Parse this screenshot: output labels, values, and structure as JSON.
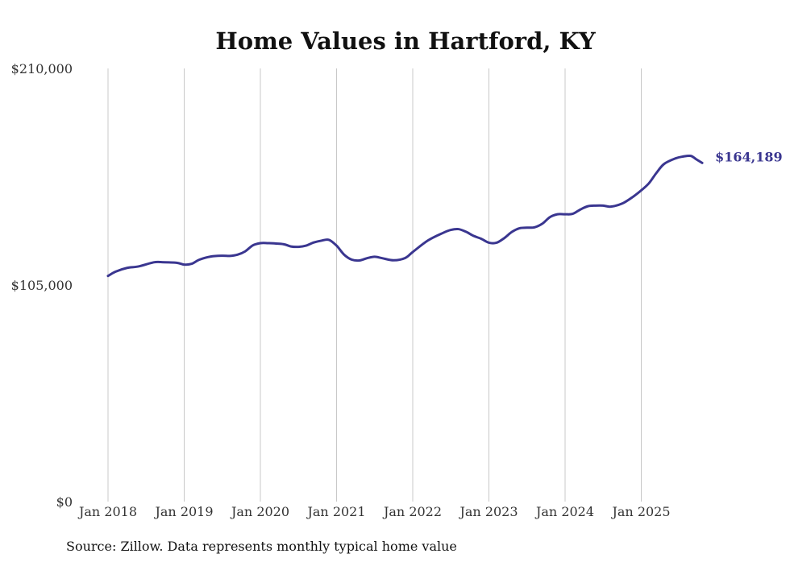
{
  "chart_data": {
    "type": "line",
    "title": "Home Values in Hartford, KY",
    "xlabel": "",
    "ylabel": "",
    "ylim": [
      0,
      210000
    ],
    "y_ticks": [
      {
        "value": 0,
        "label": "$0"
      },
      {
        "value": 105000,
        "label": "$105,000"
      },
      {
        "value": 210000,
        "label": "$210,000"
      }
    ],
    "x_ticks": [
      {
        "value": 2018,
        "label": "Jan 2018"
      },
      {
        "value": 2019,
        "label": "Jan 2019"
      },
      {
        "value": 2020,
        "label": "Jan 2020"
      },
      {
        "value": 2021,
        "label": "Jan 2021"
      },
      {
        "value": 2022,
        "label": "Jan 2022"
      },
      {
        "value": 2023,
        "label": "Jan 2023"
      },
      {
        "value": 2024,
        "label": "Jan 2024"
      },
      {
        "value": 2025,
        "label": "Jan 2025"
      }
    ],
    "xlim": [
      2018,
      2026
    ],
    "grid": "vertical",
    "series": [
      {
        "name": "Typical home value",
        "color": "#3a3690",
        "end_label": "$164,189",
        "points": [
          [
            2018.0,
            109400
          ],
          [
            2018.1,
            111500
          ],
          [
            2018.25,
            113300
          ],
          [
            2018.4,
            114000
          ],
          [
            2018.6,
            116000
          ],
          [
            2018.7,
            116100
          ],
          [
            2018.9,
            115800
          ],
          [
            2019.0,
            114900
          ],
          [
            2019.1,
            115300
          ],
          [
            2019.2,
            117300
          ],
          [
            2019.35,
            118800
          ],
          [
            2019.5,
            119200
          ],
          [
            2019.6,
            119100
          ],
          [
            2019.7,
            119700
          ],
          [
            2019.8,
            121300
          ],
          [
            2019.9,
            124200
          ],
          [
            2020.0,
            125300
          ],
          [
            2020.1,
            125300
          ],
          [
            2020.3,
            124800
          ],
          [
            2020.4,
            123700
          ],
          [
            2020.5,
            123500
          ],
          [
            2020.6,
            124100
          ],
          [
            2020.7,
            125600
          ],
          [
            2020.8,
            126500
          ],
          [
            2020.9,
            126900
          ],
          [
            2021.0,
            124100
          ],
          [
            2021.1,
            119700
          ],
          [
            2021.2,
            117300
          ],
          [
            2021.3,
            116900
          ],
          [
            2021.4,
            118000
          ],
          [
            2021.5,
            118700
          ],
          [
            2021.6,
            118000
          ],
          [
            2021.75,
            117000
          ],
          [
            2021.9,
            118100
          ],
          [
            2022.0,
            121000
          ],
          [
            2022.2,
            126600
          ],
          [
            2022.4,
            130300
          ],
          [
            2022.5,
            131700
          ],
          [
            2022.6,
            132100
          ],
          [
            2022.7,
            130800
          ],
          [
            2022.8,
            128800
          ],
          [
            2022.9,
            127400
          ],
          [
            2023.0,
            125500
          ],
          [
            2023.1,
            125500
          ],
          [
            2023.2,
            127700
          ],
          [
            2023.3,
            130700
          ],
          [
            2023.4,
            132500
          ],
          [
            2023.5,
            132800
          ],
          [
            2023.6,
            133000
          ],
          [
            2023.7,
            134700
          ],
          [
            2023.8,
            137900
          ],
          [
            2023.9,
            139300
          ],
          [
            2024.0,
            139300
          ],
          [
            2024.1,
            139500
          ],
          [
            2024.2,
            141600
          ],
          [
            2024.3,
            143200
          ],
          [
            2024.4,
            143500
          ],
          [
            2024.5,
            143500
          ],
          [
            2024.6,
            143000
          ],
          [
            2024.75,
            144500
          ],
          [
            2024.9,
            148000
          ],
          [
            2025.0,
            150900
          ],
          [
            2025.1,
            154300
          ],
          [
            2025.2,
            159400
          ],
          [
            2025.3,
            163700
          ],
          [
            2025.45,
            166400
          ],
          [
            2025.55,
            167300
          ],
          [
            2025.65,
            167600
          ],
          [
            2025.72,
            166000
          ],
          [
            2025.8,
            164189
          ]
        ]
      }
    ],
    "annotations": [
      {
        "text": "Source: Zillow. Data represents monthly typical home value",
        "position": "bottom-left"
      }
    ]
  }
}
